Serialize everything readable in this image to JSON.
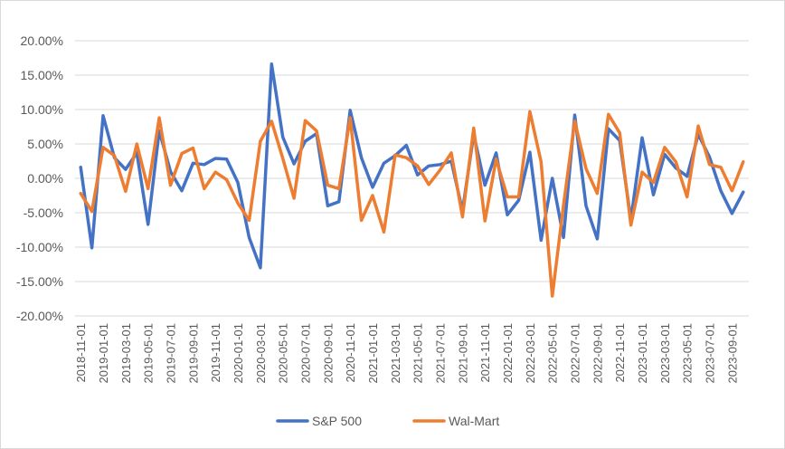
{
  "chart_data": {
    "type": "line",
    "ylim": [
      -0.2,
      0.2
    ],
    "y_ticks": [
      0.2,
      0.15,
      0.1,
      0.05,
      0.0,
      -0.05,
      -0.1,
      -0.15,
      -0.2
    ],
    "y_tick_labels": [
      "20.00%",
      "15.00%",
      "10.00%",
      "5.00%",
      "0.00%",
      "-5.00%",
      "-10.00%",
      "-15.00%",
      "-20.00%"
    ],
    "grid": true,
    "legend_position": "bottom",
    "x": [
      "2018-11-01",
      "2018-12-01",
      "2019-01-01",
      "2019-02-01",
      "2019-03-01",
      "2019-04-01",
      "2019-05-01",
      "2019-06-01",
      "2019-07-01",
      "2019-08-01",
      "2019-09-01",
      "2019-10-01",
      "2019-11-01",
      "2019-12-01",
      "2020-01-01",
      "2020-02-01",
      "2020-03-01",
      "2020-04-01",
      "2020-05-01",
      "2020-06-01",
      "2020-07-01",
      "2020-08-01",
      "2020-09-01",
      "2020-10-01",
      "2020-11-01",
      "2020-12-01",
      "2021-01-01",
      "2021-02-01",
      "2021-03-01",
      "2021-04-01",
      "2021-05-01",
      "2021-06-01",
      "2021-07-01",
      "2021-08-01",
      "2021-09-01",
      "2021-10-01",
      "2021-11-01",
      "2021-12-01",
      "2022-01-01",
      "2022-02-01",
      "2022-03-01",
      "2022-04-01",
      "2022-05-01",
      "2022-06-01",
      "2022-07-01",
      "2022-08-01",
      "2022-09-01",
      "2022-10-01",
      "2022-11-01",
      "2022-12-01",
      "2023-01-01",
      "2023-02-01",
      "2023-03-01",
      "2023-04-01",
      "2023-05-01",
      "2023-06-01",
      "2023-07-01",
      "2023-08-01",
      "2023-09-01",
      "2023-10-01"
    ],
    "x_tick_labels": [
      "2018-11-01",
      "2019-01-01",
      "2019-03-01",
      "2019-05-01",
      "2019-07-01",
      "2019-09-01",
      "2019-11-01",
      "2020-01-01",
      "2020-03-01",
      "2020-05-01",
      "2020-07-01",
      "2020-09-01",
      "2020-11-01",
      "2021-01-01",
      "2021-03-01",
      "2021-05-01",
      "2021-07-01",
      "2021-09-01",
      "2021-11-01",
      "2022-01-01",
      "2022-03-01",
      "2022-05-01",
      "2022-07-01",
      "2022-09-01",
      "2022-11-01",
      "2023-01-01",
      "2023-03-01",
      "2023-05-01",
      "2023-07-01",
      "2023-09-01"
    ],
    "series": [
      {
        "name": "S&P 500",
        "color": "#4472c4",
        "values": [
          0.016,
          -0.101,
          0.091,
          0.03,
          0.013,
          0.037,
          -0.067,
          0.069,
          0.01,
          -0.018,
          0.022,
          0.02,
          0.029,
          0.028,
          -0.006,
          -0.086,
          -0.13,
          0.166,
          0.06,
          0.021,
          0.054,
          0.065,
          -0.04,
          -0.034,
          0.099,
          0.03,
          -0.013,
          0.022,
          0.033,
          0.048,
          0.005,
          0.018,
          0.02,
          0.025,
          -0.047,
          0.064,
          -0.01,
          0.037,
          -0.053,
          -0.032,
          0.038,
          -0.09,
          0.0,
          -0.086,
          0.092,
          -0.04,
          -0.088,
          0.072,
          0.055,
          -0.06,
          0.059,
          -0.024,
          0.035,
          0.015,
          0.003,
          0.064,
          0.031,
          -0.018,
          -0.051,
          -0.02
        ]
      },
      {
        "name": "Wal-Mart",
        "color": "#ed7d31",
        "values": [
          -0.022,
          -0.048,
          0.045,
          0.033,
          -0.019,
          0.05,
          -0.015,
          0.088,
          -0.01,
          0.036,
          0.044,
          -0.015,
          0.009,
          -0.002,
          -0.036,
          -0.061,
          0.054,
          0.083,
          0.029,
          -0.029,
          0.084,
          0.069,
          -0.01,
          -0.015,
          0.088,
          -0.061,
          -0.025,
          -0.078,
          0.034,
          0.03,
          0.018,
          -0.009,
          0.012,
          0.037,
          -0.056,
          0.073,
          -0.062,
          0.028,
          -0.027,
          -0.027,
          0.097,
          0.024,
          -0.171,
          -0.039,
          0.083,
          0.014,
          -0.022,
          0.093,
          0.066,
          -0.068,
          0.009,
          -0.006,
          0.045,
          0.024,
          -0.027,
          0.076,
          0.02,
          0.016,
          -0.018,
          0.024
        ]
      }
    ]
  }
}
